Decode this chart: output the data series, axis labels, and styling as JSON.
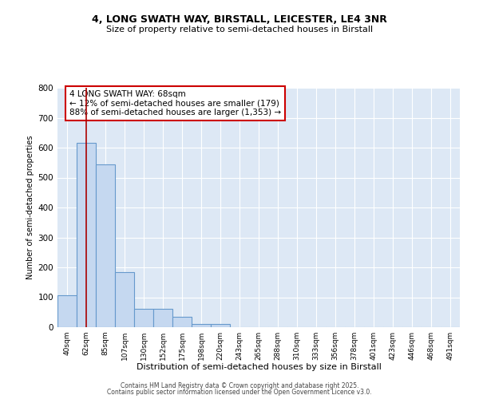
{
  "title": "4, LONG SWATH WAY, BIRSTALL, LEICESTER, LE4 3NR",
  "subtitle": "Size of property relative to semi-detached houses in Birstall",
  "xlabel": "Distribution of semi-detached houses by size in Birstall",
  "ylabel": "Number of semi-detached properties",
  "categories": [
    "40sqm",
    "62sqm",
    "85sqm",
    "107sqm",
    "130sqm",
    "152sqm",
    "175sqm",
    "198sqm",
    "220sqm",
    "243sqm",
    "265sqm",
    "288sqm",
    "310sqm",
    "333sqm",
    "356sqm",
    "378sqm",
    "401sqm",
    "423sqm",
    "446sqm",
    "468sqm",
    "491sqm"
  ],
  "values": [
    107,
    615,
    543,
    183,
    62,
    62,
    35,
    12,
    12,
    0,
    0,
    0,
    0,
    0,
    0,
    0,
    0,
    0,
    0,
    0,
    0
  ],
  "bar_color": "#c5d8f0",
  "bar_edge_color": "#6699cc",
  "background_color": "#dde8f5",
  "marker_line_color": "#aa0000",
  "annotation_text": "4 LONG SWATH WAY: 68sqm\n← 12% of semi-detached houses are smaller (179)\n88% of semi-detached houses are larger (1,353) →",
  "ylim": [
    0,
    800
  ],
  "yticks": [
    0,
    100,
    200,
    300,
    400,
    500,
    600,
    700,
    800
  ],
  "footer1": "Contains HM Land Registry data © Crown copyright and database right 2025.",
  "footer2": "Contains public sector information licensed under the Open Government Licence v3.0."
}
